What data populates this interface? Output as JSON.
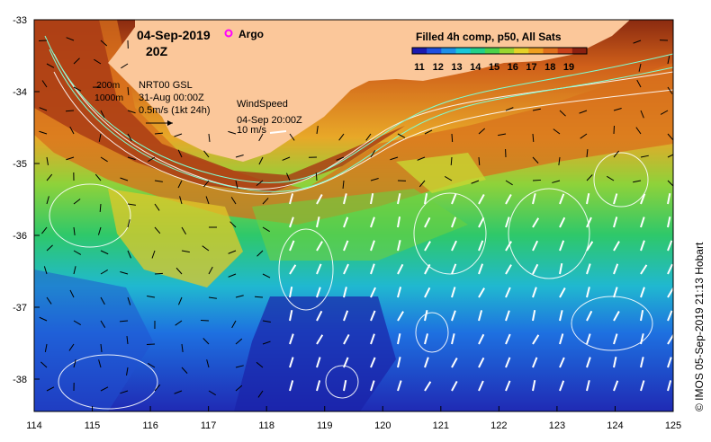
{
  "map": {
    "date": "04-Sep-2019",
    "hour": "20Z",
    "argo_label": "Argo",
    "depth_labels": [
      "200m",
      "1000m"
    ],
    "current_source": "NRT00 GSL",
    "current_date": "31-Aug 00:00Z",
    "current_scale": "0.5m/s (1kt 24h)",
    "wind_title": "WindSpeed",
    "wind_date": "04-Sep 20:00Z",
    "wind_scale": "10 m/s",
    "credit": "© IMOS 05-Sep-2019 21:13 Hobart"
  },
  "colorbar": {
    "title": "Filled 4h comp, p50, All Sats",
    "ticks": [
      "11",
      "12",
      "13",
      "14",
      "15",
      "16",
      "17",
      "18",
      "19"
    ],
    "colors": [
      "#1a1ab0",
      "#1e4fe0",
      "#1d8fe8",
      "#19c7d8",
      "#22d08a",
      "#4cd24a",
      "#9ad630",
      "#e6d228",
      "#f0a020",
      "#e0701c",
      "#c8401a",
      "#8a2010"
    ]
  },
  "axes": {
    "x_ticks": [
      "114",
      "115",
      "116",
      "117",
      "118",
      "119",
      "120",
      "121",
      "122",
      "123",
      "124",
      "125"
    ],
    "y_ticks": [
      "-33",
      "-34",
      "-35",
      "-36",
      "-37",
      "-38"
    ]
  },
  "colors": {
    "land": "#fbc79a",
    "frame": "#000000",
    "argo": "#ff00ff"
  }
}
